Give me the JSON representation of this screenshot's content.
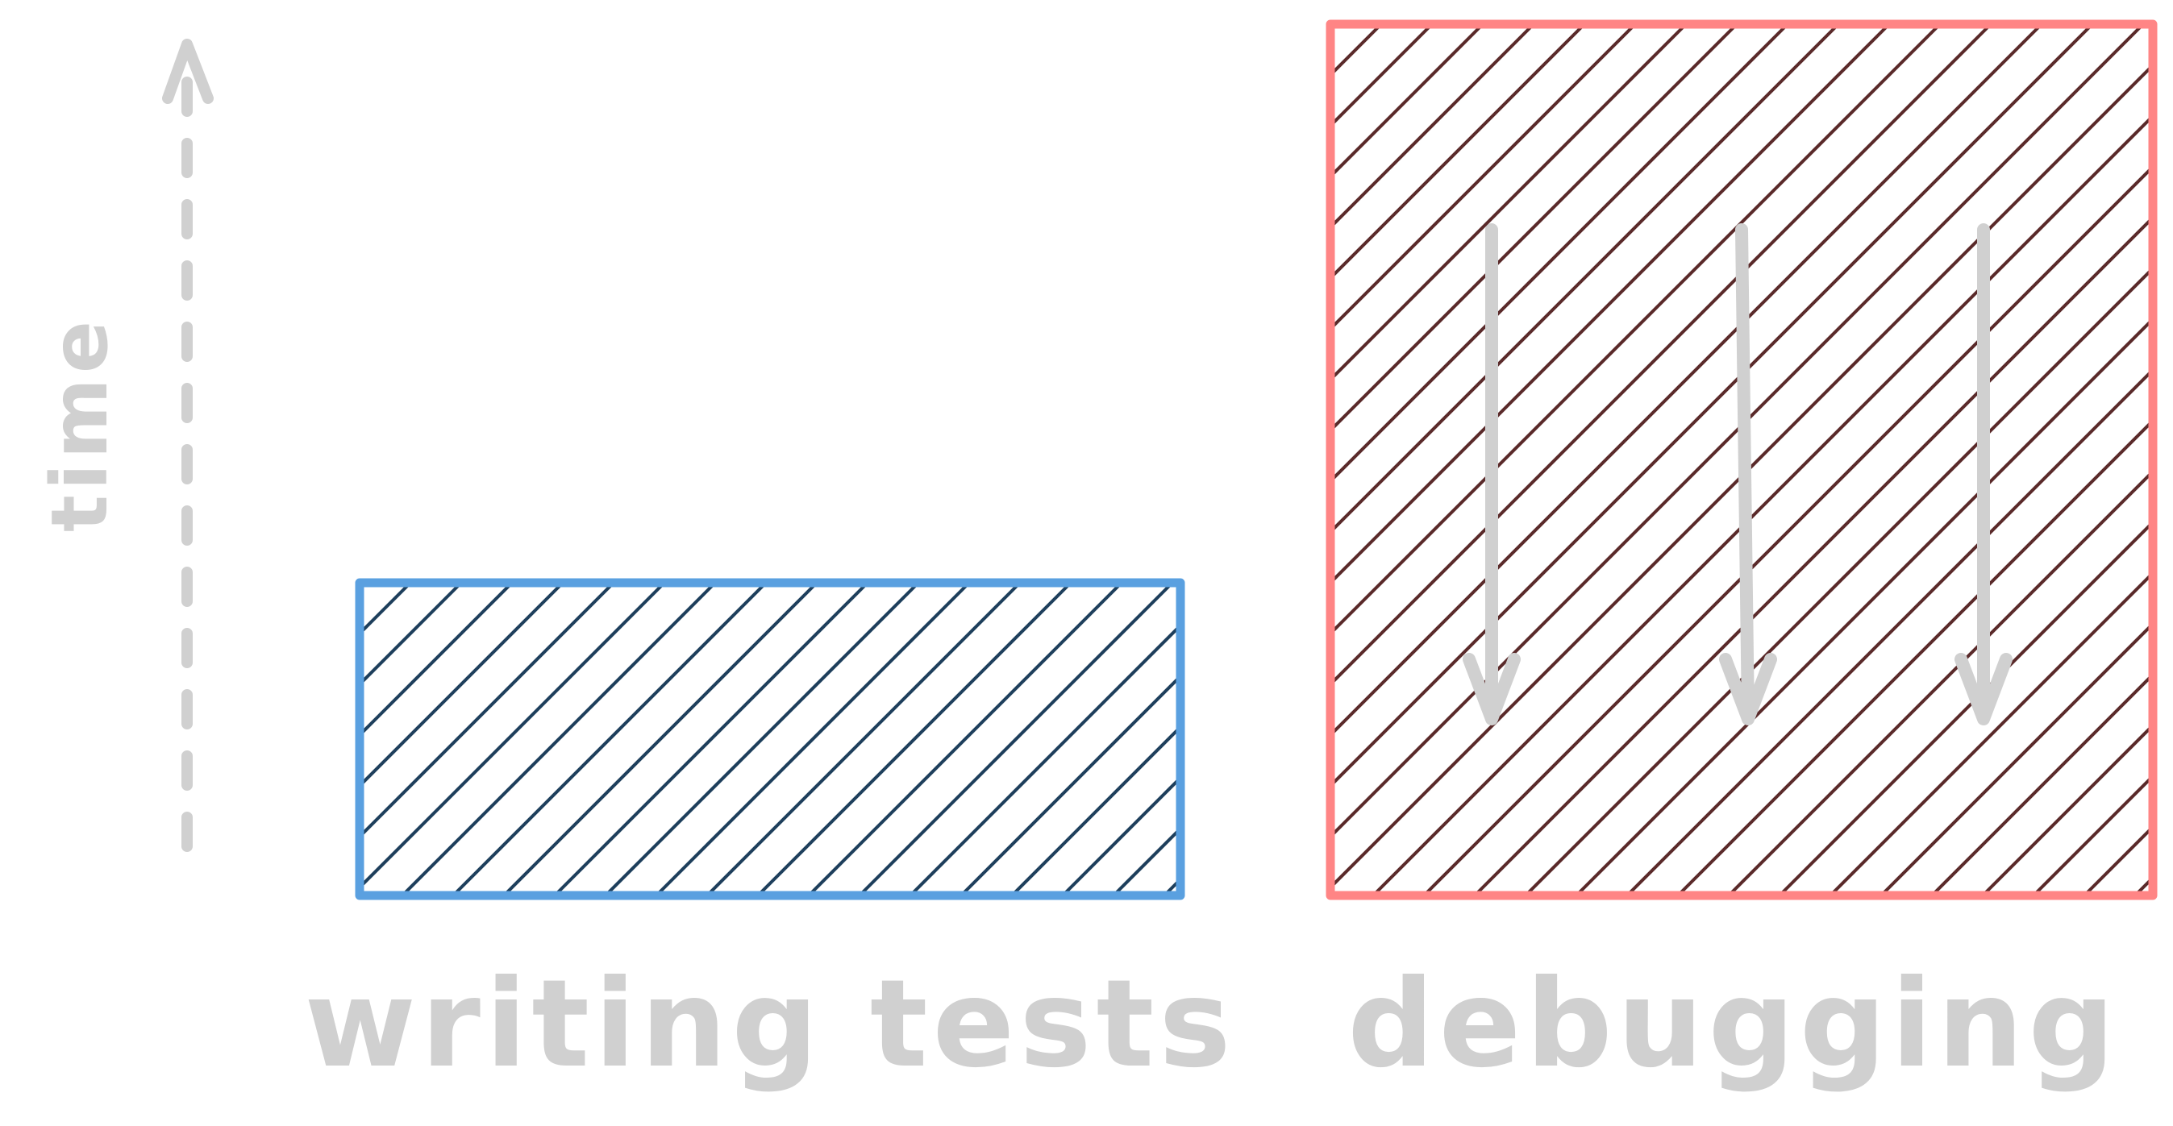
{
  "axis": {
    "label": "time",
    "color": "#d0d0d0"
  },
  "bars": [
    {
      "label": "writing tests",
      "border_color": "#5aa0e0",
      "hatch_color": "#1e3f5c"
    },
    {
      "label": "debugging",
      "border_color": "#ff8585",
      "hatch_color": "#5a2a2a"
    }
  ],
  "arrows": {
    "count": 3,
    "color": "#d0d0d0",
    "direction": "down"
  }
}
